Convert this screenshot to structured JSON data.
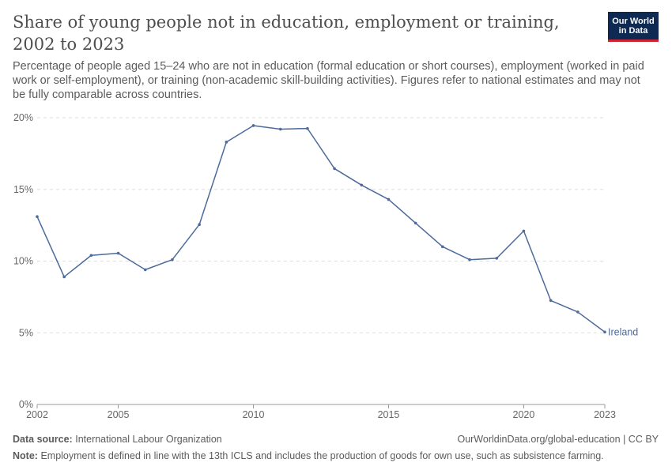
{
  "header": {
    "title": "Share of young people not in education, employment or training, 2002 to 2023",
    "subtitle": "Percentage of people aged 15–24 who are not in education (formal education or short courses), employment (worked in paid work or self-employment), or training (non-academic skill-building activities). Figures refer to national estimates and may not be fully comparable across countries.",
    "logo_line1": "Our World",
    "logo_line2": "in Data"
  },
  "footer": {
    "source_label": "Data source:",
    "source_value": "International Labour Organization",
    "url": "OurWorldinData.org/global-education | CC BY",
    "note_label": "Note:",
    "note_value": "Employment is defined in line with the 13th ICLS and includes the production of goods for own use, such as subsistence farming."
  },
  "colors": {
    "line": "#4c6a9c",
    "grid": "#dddddd",
    "axis": "#666666"
  },
  "chart_data": {
    "type": "line",
    "title": "Share of young people not in education, employment or training, 2002 to 2023",
    "xlabel": "",
    "ylabel": "",
    "xlim": [
      2002,
      2023
    ],
    "ylim": [
      0,
      20
    ],
    "x_ticks": [
      2002,
      2005,
      2010,
      2015,
      2020,
      2023
    ],
    "y_ticks": [
      0,
      5,
      10,
      15,
      20
    ],
    "y_tick_labels": [
      "0%",
      "5%",
      "10%",
      "15%",
      "20%"
    ],
    "grid": "horizontal dashed",
    "series": [
      {
        "name": "Ireland",
        "x": [
          2002,
          2003,
          2004,
          2005,
          2006,
          2007,
          2008,
          2009,
          2010,
          2011,
          2012,
          2013,
          2014,
          2015,
          2016,
          2017,
          2018,
          2019,
          2020,
          2021,
          2022,
          2023
        ],
        "values": [
          13.1,
          8.9,
          10.4,
          10.55,
          9.4,
          10.1,
          12.55,
          18.3,
          19.45,
          19.2,
          19.25,
          16.45,
          15.3,
          14.3,
          12.65,
          11.0,
          10.1,
          10.2,
          12.1,
          7.25,
          6.45,
          5.05
        ]
      }
    ]
  }
}
